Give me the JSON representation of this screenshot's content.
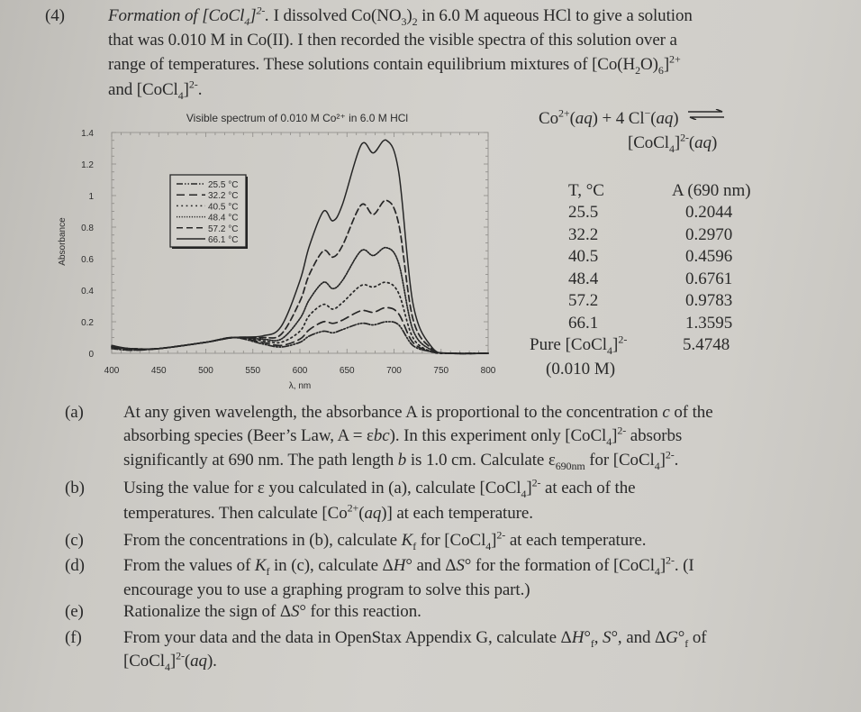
{
  "problem": {
    "number": "(4)",
    "title": "Formation of [CoCl4]2-.",
    "intro_lines": [
      "I dissolved Co(NO3)2 in 6.0 M aqueous HCl to give a solution",
      "that was 0.010 M in Co(II). I then recorded the visible spectra of this solution over a",
      "range of temperatures. These solutions contain equilibrium mixtures of [Co(H2O)6]2+",
      "and [CoCl4]2-."
    ]
  },
  "equation": {
    "line1": "Co2+(aq) + 4 Cl−(aq) ⇌",
    "line2": "[CoCl4]2-(aq)"
  },
  "data_table": {
    "headers": [
      "T, °C",
      "A (690 nm)"
    ],
    "rows": [
      [
        "25.5",
        "0.2044"
      ],
      [
        "32.2",
        "0.2970"
      ],
      [
        "40.5",
        "0.4596"
      ],
      [
        "48.4",
        "0.6761"
      ],
      [
        "57.2",
        "0.9783"
      ],
      [
        "66.1",
        "1.3595"
      ],
      [
        "Pure [CoCl4]2-",
        "5.4748"
      ]
    ],
    "footnote": "(0.010 M)"
  },
  "chart_data": {
    "type": "line",
    "title": "Visible spectrum of 0.010 M Co2+ in 6.0 M HCl",
    "xlabel": "λ, nm",
    "ylabel": "Absorbance",
    "xlim": [
      400,
      800
    ],
    "ylim": [
      0,
      1.4
    ],
    "xticks": [
      "400",
      "450",
      "500",
      "550",
      "600",
      "650",
      "700",
      "750",
      "800"
    ],
    "yticks": [
      "0",
      "0.2",
      "0.4",
      "0.6",
      "0.8",
      "1",
      "1.2",
      "1.4"
    ],
    "grid": false,
    "legend_position": "upper-left inside",
    "x": [
      400,
      420,
      450,
      500,
      530,
      560,
      580,
      600,
      610,
      625,
      635,
      645,
      665,
      678,
      692,
      705,
      720,
      740,
      760,
      800
    ],
    "series": [
      {
        "name": "25.5 °C",
        "style": "dash-dot-dot",
        "values": [
          0.03,
          0.02,
          0.03,
          0.07,
          0.1,
          0.06,
          0.04,
          0.07,
          0.11,
          0.14,
          0.13,
          0.15,
          0.19,
          0.18,
          0.2,
          0.18,
          0.05,
          0.01,
          0.0,
          0.0
        ]
      },
      {
        "name": "32.2 °C",
        "style": "long-dash",
        "values": [
          0.04,
          0.02,
          0.03,
          0.07,
          0.1,
          0.07,
          0.05,
          0.09,
          0.15,
          0.2,
          0.19,
          0.21,
          0.27,
          0.26,
          0.29,
          0.25,
          0.07,
          0.01,
          0.0,
          0.0
        ]
      },
      {
        "name": "40.5 °C",
        "style": "dotted",
        "values": [
          0.04,
          0.03,
          0.03,
          0.07,
          0.1,
          0.08,
          0.07,
          0.14,
          0.24,
          0.31,
          0.28,
          0.32,
          0.43,
          0.42,
          0.45,
          0.38,
          0.1,
          0.01,
          0.0,
          0.0
        ]
      },
      {
        "name": "48.4 °C",
        "style": "fine-dotted",
        "values": [
          0.04,
          0.03,
          0.03,
          0.07,
          0.1,
          0.09,
          0.09,
          0.22,
          0.34,
          0.45,
          0.41,
          0.46,
          0.65,
          0.62,
          0.67,
          0.57,
          0.15,
          0.02,
          0.0,
          0.0
        ]
      },
      {
        "name": "57.2 °C",
        "style": "dash",
        "values": [
          0.04,
          0.03,
          0.03,
          0.07,
          0.1,
          0.1,
          0.12,
          0.33,
          0.5,
          0.65,
          0.61,
          0.68,
          0.94,
          0.88,
          0.97,
          0.82,
          0.22,
          0.03,
          0.0,
          0.0
        ]
      },
      {
        "name": "66.1 °C",
        "style": "solid",
        "values": [
          0.05,
          0.03,
          0.03,
          0.07,
          0.1,
          0.11,
          0.17,
          0.46,
          0.68,
          0.9,
          0.84,
          0.94,
          1.32,
          1.27,
          1.35,
          1.15,
          0.32,
          0.04,
          0.0,
          0.0
        ]
      }
    ]
  },
  "questions": [
    {
      "label": "(a)",
      "lines": [
        "At any given wavelength, the absorbance A is proportional to the concentration c of the",
        "absorbing species (Beer’s Law, A = εbc). In this experiment only [CoCl4]2- absorbs",
        "significantly at 690 nm. The path length b is 1.0 cm. Calculate ε690nm for [CoCl4]2-."
      ]
    },
    {
      "label": "(b)",
      "lines": [
        "Using the value for ε you calculated in (a), calculate [CoCl4]2- at each of the",
        "temperatures. Then calculate [Co2+(aq)] at each temperature."
      ]
    },
    {
      "label": "(c)",
      "lines": [
        "From the concentrations in (b), calculate Kf for [CoCl4]2- at each temperature."
      ]
    },
    {
      "label": "(d)",
      "lines": [
        "From the values of Kf in (c), calculate ΔH° and ΔS° for the formation of [CoCl4]2-. (I",
        "encourage you to use a graphing program to solve this part.)"
      ]
    },
    {
      "label": "(e)",
      "lines": [
        "Rationalize the sign of ΔS° for this reaction."
      ]
    },
    {
      "label": "(f)",
      "lines": [
        "From your data and the data in OpenStax Appendix G, calculate ΔH°f, S°, and ΔG°f of",
        "[CoCl4]2-(aq)."
      ]
    }
  ]
}
